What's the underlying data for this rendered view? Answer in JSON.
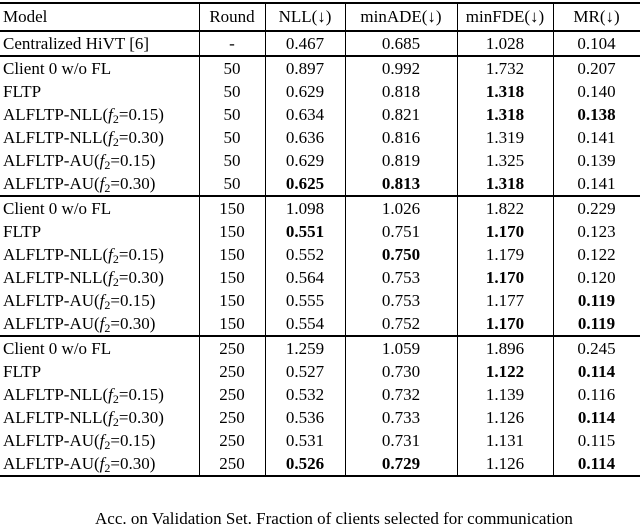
{
  "table": {
    "columns": [
      "Model",
      "Round",
      "NLL(↓)",
      "minADE(↓)",
      "minFDE(↓)",
      "MR(↓)"
    ],
    "groups": [
      {
        "rows": [
          {
            "model": [
              {
                "t": "Centralized HiVT [6]"
              }
            ],
            "round": "-",
            "values": [
              {
                "v": "0.467"
              },
              {
                "v": "0.685"
              },
              {
                "v": "1.028"
              },
              {
                "v": "0.104"
              }
            ]
          }
        ]
      },
      {
        "rows": [
          {
            "model": [
              {
                "t": "Client 0 w/o FL"
              }
            ],
            "round": "50",
            "values": [
              {
                "v": "0.897"
              },
              {
                "v": "0.992"
              },
              {
                "v": "1.732"
              },
              {
                "v": "0.207"
              }
            ]
          },
          {
            "model": [
              {
                "t": "FLTP"
              }
            ],
            "round": "50",
            "values": [
              {
                "v": "0.629"
              },
              {
                "v": "0.818"
              },
              {
                "v": "1.318",
                "b": true
              },
              {
                "v": "0.140"
              }
            ]
          },
          {
            "model": [
              {
                "t": "ALFLTP-NLL("
              },
              {
                "t": "f",
                "i": true
              },
              {
                "t": "2",
                "sub": true
              },
              {
                "t": "=0.15)"
              }
            ],
            "round": "50",
            "values": [
              {
                "v": "0.634"
              },
              {
                "v": "0.821"
              },
              {
                "v": "1.318",
                "b": true
              },
              {
                "v": "0.138",
                "b": true
              }
            ]
          },
          {
            "model": [
              {
                "t": "ALFLTP-NLL("
              },
              {
                "t": "f",
                "i": true
              },
              {
                "t": "2",
                "sub": true
              },
              {
                "t": "=0.30)"
              }
            ],
            "round": "50",
            "values": [
              {
                "v": "0.636"
              },
              {
                "v": "0.816"
              },
              {
                "v": "1.319"
              },
              {
                "v": "0.141"
              }
            ]
          },
          {
            "model": [
              {
                "t": "ALFLTP-AU("
              },
              {
                "t": "f",
                "i": true
              },
              {
                "t": "2",
                "sub": true
              },
              {
                "t": "=0.15)"
              }
            ],
            "round": "50",
            "values": [
              {
                "v": "0.629"
              },
              {
                "v": "0.819"
              },
              {
                "v": "1.325"
              },
              {
                "v": "0.139"
              }
            ]
          },
          {
            "model": [
              {
                "t": "ALFLTP-AU("
              },
              {
                "t": "f",
                "i": true
              },
              {
                "t": "2",
                "sub": true
              },
              {
                "t": "=0.30)"
              }
            ],
            "round": "50",
            "values": [
              {
                "v": "0.625",
                "b": true
              },
              {
                "v": "0.813",
                "b": true
              },
              {
                "v": "1.318",
                "b": true
              },
              {
                "v": "0.141"
              }
            ]
          }
        ]
      },
      {
        "rows": [
          {
            "model": [
              {
                "t": "Client 0 w/o FL"
              }
            ],
            "round": "150",
            "values": [
              {
                "v": "1.098"
              },
              {
                "v": "1.026"
              },
              {
                "v": "1.822"
              },
              {
                "v": "0.229"
              }
            ]
          },
          {
            "model": [
              {
                "t": "FLTP"
              }
            ],
            "round": "150",
            "values": [
              {
                "v": "0.551",
                "b": true
              },
              {
                "v": "0.751"
              },
              {
                "v": "1.170",
                "b": true
              },
              {
                "v": "0.123"
              }
            ]
          },
          {
            "model": [
              {
                "t": "ALFLTP-NLL("
              },
              {
                "t": "f",
                "i": true
              },
              {
                "t": "2",
                "sub": true
              },
              {
                "t": "=0.15)"
              }
            ],
            "round": "150",
            "values": [
              {
                "v": "0.552"
              },
              {
                "v": "0.750",
                "b": true
              },
              {
                "v": "1.179"
              },
              {
                "v": "0.122"
              }
            ]
          },
          {
            "model": [
              {
                "t": "ALFLTP-NLL("
              },
              {
                "t": "f",
                "i": true
              },
              {
                "t": "2",
                "sub": true
              },
              {
                "t": "=0.30)"
              }
            ],
            "round": "150",
            "values": [
              {
                "v": "0.564"
              },
              {
                "v": "0.753"
              },
              {
                "v": "1.170",
                "b": true
              },
              {
                "v": "0.120"
              }
            ]
          },
          {
            "model": [
              {
                "t": "ALFLTP-AU("
              },
              {
                "t": "f",
                "i": true
              },
              {
                "t": "2",
                "sub": true
              },
              {
                "t": "=0.15)"
              }
            ],
            "round": "150",
            "values": [
              {
                "v": "0.555"
              },
              {
                "v": "0.753"
              },
              {
                "v": "1.177"
              },
              {
                "v": "0.119",
                "b": true
              }
            ]
          },
          {
            "model": [
              {
                "t": "ALFLTP-AU("
              },
              {
                "t": "f",
                "i": true
              },
              {
                "t": "2",
                "sub": true
              },
              {
                "t": "=0.30)"
              }
            ],
            "round": "150",
            "values": [
              {
                "v": "0.554"
              },
              {
                "v": "0.752"
              },
              {
                "v": "1.170",
                "b": true
              },
              {
                "v": "0.119",
                "b": true
              }
            ]
          }
        ]
      },
      {
        "rows": [
          {
            "model": [
              {
                "t": "Client 0 w/o FL"
              }
            ],
            "round": "250",
            "values": [
              {
                "v": "1.259"
              },
              {
                "v": "1.059"
              },
              {
                "v": "1.896"
              },
              {
                "v": "0.245"
              }
            ]
          },
          {
            "model": [
              {
                "t": "FLTP"
              }
            ],
            "round": "250",
            "values": [
              {
                "v": "0.527"
              },
              {
                "v": "0.730"
              },
              {
                "v": "1.122",
                "b": true
              },
              {
                "v": "0.114",
                "b": true
              }
            ]
          },
          {
            "model": [
              {
                "t": "ALFLTP-NLL("
              },
              {
                "t": "f",
                "i": true
              },
              {
                "t": "2",
                "sub": true
              },
              {
                "t": "=0.15)"
              }
            ],
            "round": "250",
            "values": [
              {
                "v": "0.532"
              },
              {
                "v": "0.732"
              },
              {
                "v": "1.139"
              },
              {
                "v": "0.116"
              }
            ]
          },
          {
            "model": [
              {
                "t": "ALFLTP-NLL("
              },
              {
                "t": "f",
                "i": true
              },
              {
                "t": "2",
                "sub": true
              },
              {
                "t": "=0.30)"
              }
            ],
            "round": "250",
            "values": [
              {
                "v": "0.536"
              },
              {
                "v": "0.733"
              },
              {
                "v": "1.126"
              },
              {
                "v": "0.114",
                "b": true
              }
            ]
          },
          {
            "model": [
              {
                "t": "ALFLTP-AU("
              },
              {
                "t": "f",
                "i": true
              },
              {
                "t": "2",
                "sub": true
              },
              {
                "t": "=0.15)"
              }
            ],
            "round": "250",
            "values": [
              {
                "v": "0.531"
              },
              {
                "v": "0.731"
              },
              {
                "v": "1.131"
              },
              {
                "v": "0.115"
              }
            ]
          },
          {
            "model": [
              {
                "t": "ALFLTP-AU("
              },
              {
                "t": "f",
                "i": true
              },
              {
                "t": "2",
                "sub": true
              },
              {
                "t": "=0.30)"
              }
            ],
            "round": "250",
            "values": [
              {
                "v": "0.526",
                "b": true
              },
              {
                "v": "0.729",
                "b": true
              },
              {
                "v": "1.126"
              },
              {
                "v": "0.114",
                "b": true
              }
            ]
          }
        ]
      }
    ]
  },
  "caption": {
    "text": "Acc. on Validation Set. Fraction of clients selected for communication"
  }
}
